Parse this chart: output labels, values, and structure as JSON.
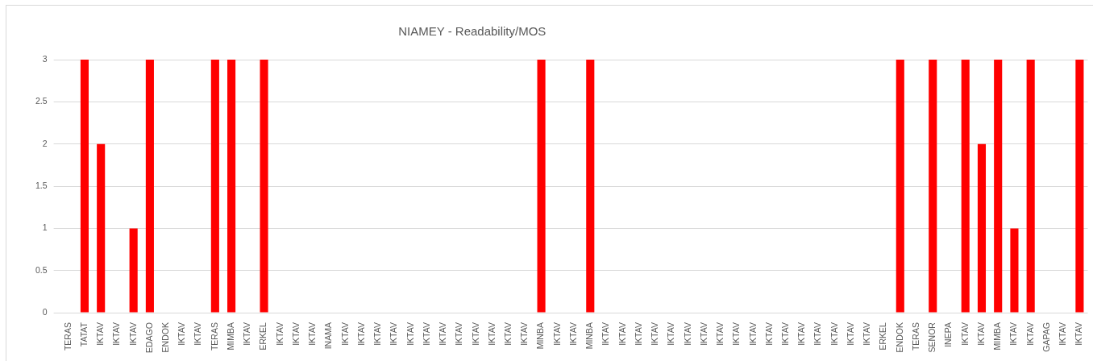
{
  "chart_data": {
    "type": "bar",
    "title": "NIAMEY - Readability/MOS",
    "categories": [
      "TERAS",
      "TATAT",
      "IKTAV",
      "IKTAV",
      "IKTAV",
      "EDAGO",
      "ENDOK",
      "IKTAV",
      "IKTAV",
      "TERAS",
      "MIMBA",
      "IKTAV",
      "ERKEL",
      "IKTAV",
      "IKTAV",
      "IKTAV",
      "INAMA",
      "IKTAV",
      "IKTAV",
      "IKTAV",
      "IKTAV",
      "IKTAV",
      "IKTAV",
      "IKTAV",
      "IKTAV",
      "IKTAV",
      "IKTAV",
      "IKTAV",
      "IKTAV",
      "MINBA",
      "IKTAV",
      "IKTAV",
      "MINBA",
      "IKTAV",
      "IKTAV",
      "IKTAV",
      "IKTAV",
      "IKTAV",
      "IKTAV",
      "IKTAV",
      "IKTAV",
      "IKTAV",
      "IKTAV",
      "IKTAV",
      "IKTAV",
      "IKTAV",
      "IKTAV",
      "IKTAV",
      "IKTAV",
      "IKTAV",
      "ERKEL",
      "ENDOK",
      "TERAS",
      "SENOR",
      "INEPA",
      "IKTAV",
      "IKTAV",
      "MIMBA",
      "IKTAV",
      "IKTAV",
      "GAPAG",
      "IKTAV",
      "IKTAV"
    ],
    "values": [
      0,
      3,
      2,
      0,
      1,
      3,
      0,
      0,
      0,
      3,
      3,
      0,
      3,
      0,
      0,
      0,
      0,
      0,
      0,
      0,
      0,
      0,
      0,
      0,
      0,
      0,
      0,
      0,
      0,
      3,
      0,
      0,
      3,
      0,
      0,
      0,
      0,
      0,
      0,
      0,
      0,
      0,
      0,
      0,
      0,
      0,
      0,
      0,
      0,
      0,
      0,
      3,
      0,
      3,
      0,
      3,
      2,
      3,
      1,
      3,
      0,
      0,
      3
    ],
    "color": "#ff0000",
    "ylim": [
      0,
      3
    ],
    "yticks": [
      0,
      0.5,
      1,
      1.5,
      2,
      2.5,
      3
    ],
    "grid": "y"
  }
}
